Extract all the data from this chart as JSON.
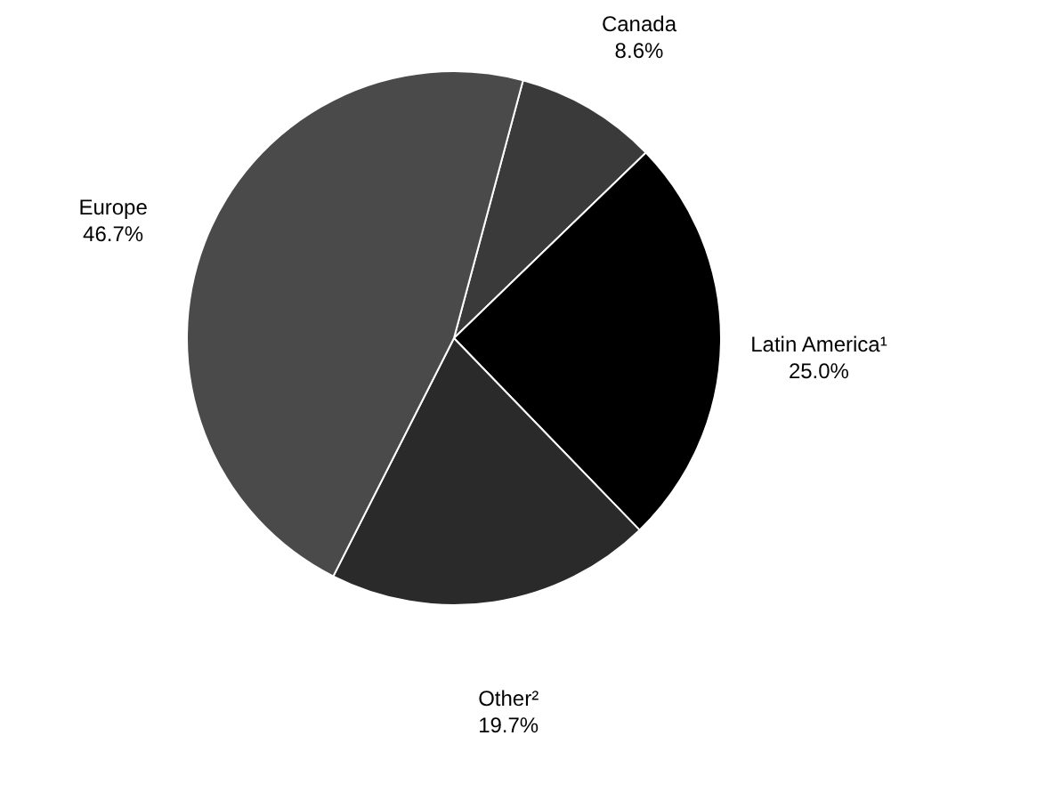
{
  "chart_data": {
    "type": "pie",
    "categories": [
      "Canada",
      "Latin America¹",
      "Other²",
      "Europe"
    ],
    "values": [
      8.6,
      25.0,
      19.7,
      46.7
    ],
    "colors": [
      "#3a3a3a",
      "#000000",
      "#2a2a2a",
      "#4a4a4a"
    ],
    "value_labels": [
      "8.6%",
      "25.0%",
      "19.7%",
      "46.7%"
    ]
  }
}
